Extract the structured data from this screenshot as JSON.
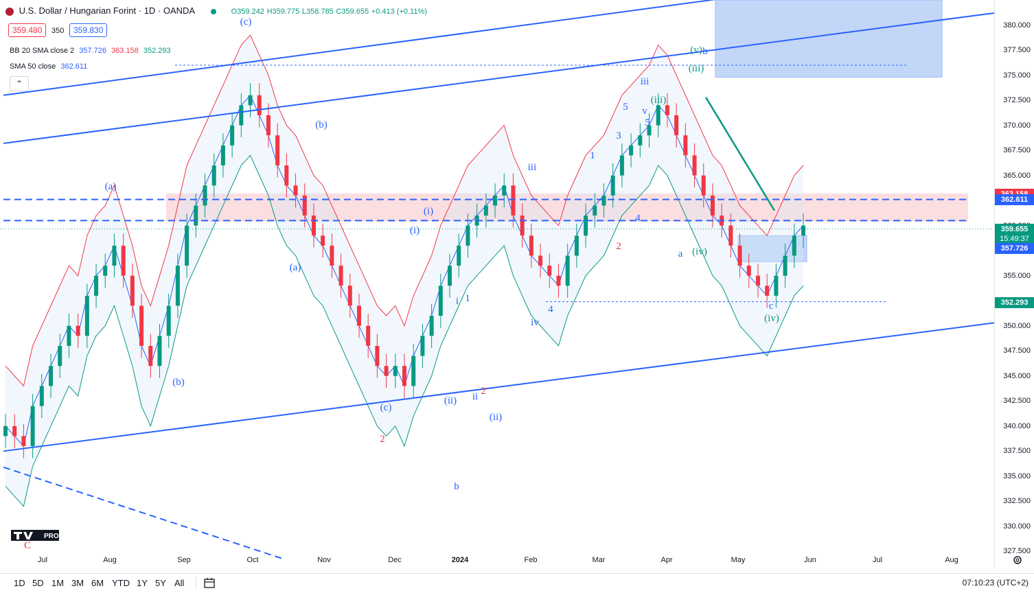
{
  "header": {
    "title": "U.S. Dollar / Hungarian Forint · 1D · OANDA",
    "ohlc": {
      "o": "O359.242",
      "h": "H359.775",
      "l": "L358.785",
      "c": "C359.655",
      "chg": "+0.413 (+0.11%)"
    },
    "bid": "359.480",
    "spread": "350",
    "ask": "359.830"
  },
  "indicators": {
    "bb": {
      "label": "BB 20 SMA close 2",
      "basis": "357.726",
      "upper": "363.158",
      "lower": "352.293"
    },
    "sma": {
      "label": "SMA 50 close",
      "value": "362.611"
    },
    "collapse_glyph": "⌃"
  },
  "price_axis": {
    "ticks": [
      "380.000",
      "377.500",
      "375.000",
      "372.500",
      "370.000",
      "367.500",
      "365.000",
      "360.000",
      "355.000",
      "350.000",
      "347.500",
      "345.000",
      "342.500",
      "340.000",
      "337.500",
      "335.000",
      "332.500",
      "330.000",
      "327.500"
    ],
    "badges": [
      {
        "label": "363.158",
        "color": "#f23645"
      },
      {
        "label": "362.611",
        "color": "#2962ff"
      },
      {
        "label": "359.655",
        "sub": "15:49:37",
        "color": "#089981"
      },
      {
        "label": "357.726",
        "color": "#2962ff"
      },
      {
        "label": "352.293",
        "color": "#089981"
      }
    ]
  },
  "time_axis": [
    "Jul",
    "Aug",
    "Sep",
    "Oct",
    "Nov",
    "Dec",
    "2024",
    "Feb",
    "Mar",
    "Apr",
    "May",
    "Jun",
    "Jul",
    "Aug"
  ],
  "ranges": [
    "1D",
    "5D",
    "1M",
    "3M",
    "6M",
    "YTD",
    "1Y",
    "5Y",
    "All"
  ],
  "clock": "07:10:23 (UTC+2)",
  "logo_text": "PRO",
  "wave_labels": [
    "(c)",
    "(a)",
    "(b)",
    "(b)",
    "(a)",
    "(i)",
    "(i)",
    "(c)",
    "(ii)",
    "ii",
    "(ii)",
    "2",
    "b",
    "i",
    "iii",
    "iv",
    "iii",
    "(iii)",
    "v",
    "(iii)",
    "(v)",
    "b",
    "a",
    "(iv)",
    "c",
    "(iv)",
    "C",
    "1",
    "2",
    "3",
    "4",
    "5",
    "1",
    "2",
    "4",
    "5"
  ],
  "colors": {
    "up": "#089981",
    "down": "#f23645",
    "trend": "#2962ff",
    "zone": "#f8c8cc",
    "box": "#7aa7f0"
  },
  "chart_data": {
    "type": "candlestick",
    "ylim": [
      326.5,
      381.2
    ]
  }
}
